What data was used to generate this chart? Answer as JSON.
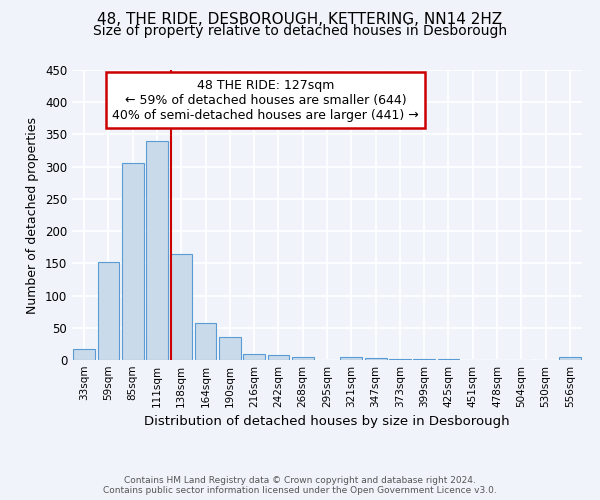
{
  "title": "48, THE RIDE, DESBOROUGH, KETTERING, NN14 2HZ",
  "subtitle": "Size of property relative to detached houses in Desborough",
  "xlabel": "Distribution of detached houses by size in Desborough",
  "ylabel": "Number of detached properties",
  "footer_line1": "Contains HM Land Registry data © Crown copyright and database right 2024.",
  "footer_line2": "Contains public sector information licensed under the Open Government Licence v3.0.",
  "categories": [
    "33sqm",
    "59sqm",
    "85sqm",
    "111sqm",
    "138sqm",
    "164sqm",
    "190sqm",
    "216sqm",
    "242sqm",
    "268sqm",
    "295sqm",
    "321sqm",
    "347sqm",
    "373sqm",
    "399sqm",
    "425sqm",
    "451sqm",
    "478sqm",
    "504sqm",
    "530sqm",
    "556sqm"
  ],
  "values": [
    17,
    152,
    305,
    340,
    165,
    57,
    35,
    10,
    8,
    5,
    0,
    5,
    3,
    2,
    1,
    1,
    0,
    0,
    0,
    0,
    4
  ],
  "bar_color": "#c9daea",
  "bar_edge_color": "#5b9bd5",
  "vline_color": "#cc0000",
  "vline_position": 3.59,
  "annotation_text": "48 THE RIDE: 127sqm\n← 59% of detached houses are smaller (644)\n40% of semi-detached houses are larger (441) →",
  "annotation_box_color": "#ffffff",
  "annotation_box_edge_color": "#cc0000",
  "ylim": [
    0,
    450
  ],
  "yticks": [
    0,
    50,
    100,
    150,
    200,
    250,
    300,
    350,
    400,
    450
  ],
  "title_fontsize": 11,
  "subtitle_fontsize": 10,
  "bg_color": "#f0f4fa",
  "grid_color": "#d0dce8",
  "anno_fontsize": 9
}
